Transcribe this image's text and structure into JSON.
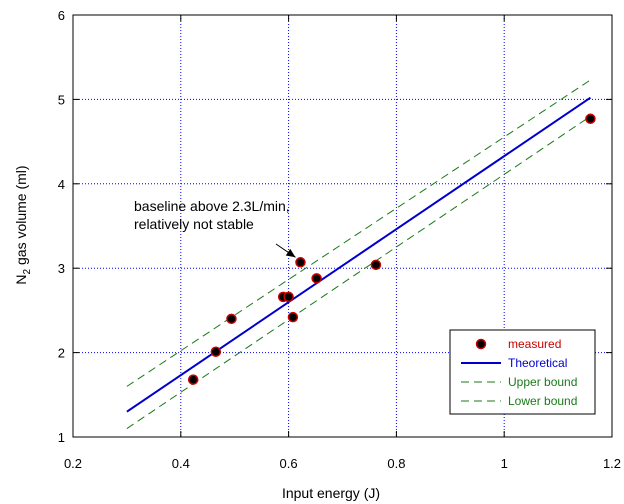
{
  "chart_data": {
    "type": "scatter",
    "title": "",
    "xlabel": "Input energy (J)",
    "ylabel_prefix": "N",
    "ylabel_sub": "2",
    "ylabel_suffix": " gas volume (ml)",
    "xlim": [
      0.2,
      1.2
    ],
    "ylim": [
      1,
      6
    ],
    "x_ticks": [
      0.2,
      0.4,
      0.6,
      0.8,
      1,
      1.2
    ],
    "x_tick_labels": [
      "0.2",
      "0.4",
      "0.6",
      "0.8",
      "1",
      "1.2"
    ],
    "y_ticks": [
      1,
      2,
      3,
      4,
      5,
      6
    ],
    "y_tick_labels": [
      "1",
      "2",
      "3",
      "4",
      "5",
      "6"
    ],
    "grid": true,
    "legend_position": "bottom-right",
    "series": [
      {
        "name": "measured",
        "kind": "scatter",
        "color": "#cc0000",
        "x": [
          0.423,
          0.465,
          0.494,
          0.59,
          0.6,
          0.608,
          0.622,
          0.652,
          0.762,
          1.16
        ],
        "y": [
          1.68,
          2.01,
          2.4,
          2.66,
          2.66,
          2.42,
          3.07,
          2.88,
          3.04,
          4.77
        ]
      },
      {
        "name": "Theoretical",
        "kind": "line",
        "color": "#0000cc",
        "dash": "solid",
        "x": [
          0.3,
          1.16
        ],
        "y": [
          1.3,
          5.02
        ]
      },
      {
        "name": "Upper bound",
        "kind": "line",
        "color": "#1a7a1a",
        "dash": "dashed",
        "x": [
          0.3,
          1.16
        ],
        "y": [
          1.6,
          5.23
        ]
      },
      {
        "name": "Lower bound",
        "kind": "line",
        "color": "#1a7a1a",
        "dash": "dashed",
        "x": [
          0.3,
          1.16
        ],
        "y": [
          1.1,
          4.8
        ]
      }
    ],
    "annotation": {
      "lines": [
        "baseline above 2.3L/min,",
        "relatively not stable"
      ],
      "target_x": 0.622,
      "target_y": 3.07
    }
  }
}
